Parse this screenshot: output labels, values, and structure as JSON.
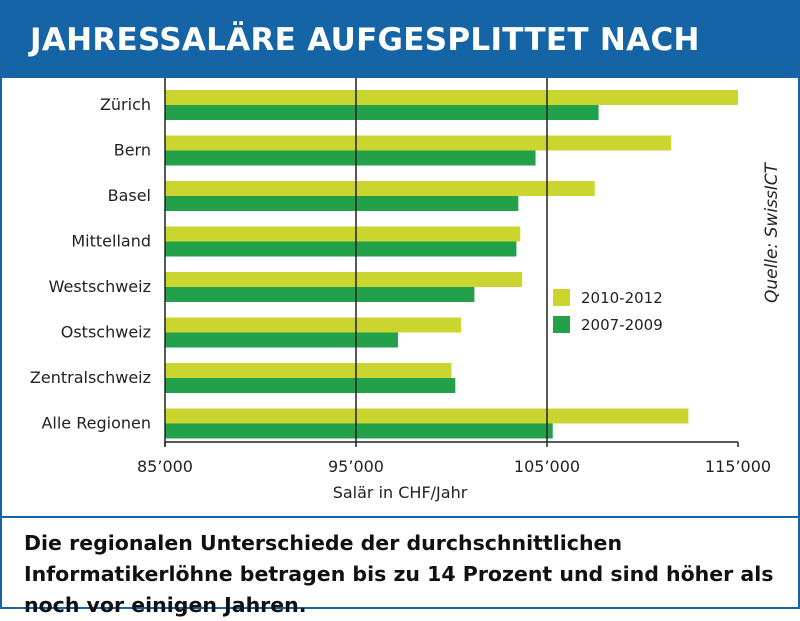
{
  "header": {
    "title": "JAHRESSALÄRE AUFGESPLITTET NACH REGIONEN"
  },
  "caption": "Die regionalen Unterschiede der durchschnittlichen Informatikerlöhne betragen bis zu 14 Prozent und sind höher als noch vor einigen Jahren.",
  "source_label": "Quelle: SwissICT",
  "colors": {
    "header_bg": "#1565a6",
    "series_2010_2012": "#cbd52f",
    "series_2007_2009": "#22a14a"
  },
  "chart_data": {
    "type": "bar",
    "orientation": "horizontal",
    "title": "JAHRESSALÄRE AUFGESPLITTET NACH REGIONEN",
    "xlabel": "Salär in CHF/Jahr",
    "ylabel": "",
    "xlim": [
      85000,
      115000
    ],
    "x_ticks": [
      85000,
      95000,
      105000,
      115000
    ],
    "x_tick_labels": [
      "85’000",
      "95’000",
      "105’000",
      "115’000"
    ],
    "reference_lines": [
      95000,
      105000
    ],
    "categories": [
      "Zürich",
      "Bern",
      "Basel",
      "Mittelland",
      "Westschweiz",
      "Ostschweiz",
      "Zentralschweiz",
      "Alle Regionen"
    ],
    "series": [
      {
        "name": "2010-2012",
        "color": "#cbd52f",
        "values": [
          115000,
          111500,
          107500,
          103600,
          103700,
          100500,
          100000,
          112400
        ]
      },
      {
        "name": "2007-2009",
        "color": "#22a14a",
        "values": [
          107700,
          104400,
          103500,
          103400,
          101200,
          97200,
          100200,
          105300
        ]
      }
    ],
    "legend_position": "center-right",
    "grid": false
  }
}
